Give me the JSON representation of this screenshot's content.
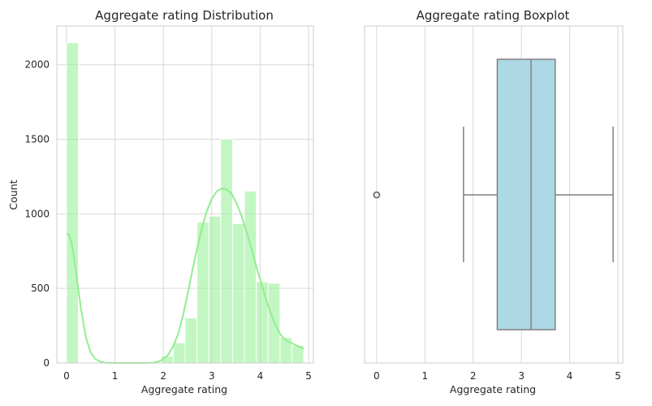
{
  "chart_data": [
    {
      "type": "bar",
      "title": "Aggregate rating Distribution",
      "xlabel": "Aggregate rating",
      "ylabel": "Count",
      "xlim": [
        -0.2,
        5.1
      ],
      "ylim": [
        0,
        2260
      ],
      "xticks": [
        0,
        1,
        2,
        3,
        4,
        5
      ],
      "yticks": [
        0,
        500,
        1000,
        1500,
        2000
      ],
      "grid": true,
      "bar_color": "#90ee90",
      "kde_color": "#90ee90",
      "bins": [
        {
          "x0": 0.0,
          "x1": 0.245,
          "count": 2148
        },
        {
          "x0": 0.245,
          "x1": 0.49,
          "count": 0
        },
        {
          "x0": 0.49,
          "x1": 0.735,
          "count": 0
        },
        {
          "x0": 0.735,
          "x1": 0.98,
          "count": 0
        },
        {
          "x0": 0.98,
          "x1": 1.225,
          "count": 0
        },
        {
          "x0": 1.225,
          "x1": 1.47,
          "count": 0
        },
        {
          "x0": 1.47,
          "x1": 1.715,
          "count": 0
        },
        {
          "x0": 1.715,
          "x1": 1.96,
          "count": 0
        },
        {
          "x0": 1.96,
          "x1": 2.205,
          "count": 48
        },
        {
          "x0": 2.205,
          "x1": 2.45,
          "count": 136
        },
        {
          "x0": 2.45,
          "x1": 2.695,
          "count": 302
        },
        {
          "x0": 2.695,
          "x1": 2.94,
          "count": 945
        },
        {
          "x0": 2.94,
          "x1": 3.185,
          "count": 985
        },
        {
          "x0": 3.185,
          "x1": 3.43,
          "count": 1502
        },
        {
          "x0": 3.43,
          "x1": 3.675,
          "count": 935
        },
        {
          "x0": 3.675,
          "x1": 3.92,
          "count": 1153
        },
        {
          "x0": 3.92,
          "x1": 4.165,
          "count": 545
        },
        {
          "x0": 4.165,
          "x1": 4.41,
          "count": 535
        },
        {
          "x0": 4.41,
          "x1": 4.655,
          "count": 172
        },
        {
          "x0": 4.655,
          "x1": 4.9,
          "count": 118
        }
      ],
      "kde": {
        "x": [
          0.0,
          0.05,
          0.1,
          0.15,
          0.2,
          0.3,
          0.4,
          0.5,
          0.6,
          0.7,
          0.8,
          1.0,
          1.2,
          1.4,
          1.6,
          1.8,
          1.9,
          2.0,
          2.1,
          2.2,
          2.3,
          2.4,
          2.5,
          2.6,
          2.7,
          2.8,
          2.9,
          3.0,
          3.1,
          3.2,
          3.3,
          3.4,
          3.5,
          3.6,
          3.7,
          3.8,
          3.9,
          4.0,
          4.1,
          4.2,
          4.3,
          4.4,
          4.5,
          4.6,
          4.7,
          4.8,
          4.9
        ],
        "y": [
          870,
          860,
          810,
          720,
          600,
          360,
          170,
          70,
          25,
          8,
          2,
          0,
          0,
          0,
          0,
          2,
          10,
          25,
          55,
          110,
          190,
          310,
          460,
          620,
          770,
          910,
          1020,
          1100,
          1150,
          1170,
          1165,
          1140,
          1080,
          1000,
          900,
          790,
          670,
          560,
          450,
          350,
          265,
          200,
          160,
          140,
          125,
          110,
          95
        ]
      }
    },
    {
      "type": "boxplot",
      "title": "Aggregate rating Boxplot",
      "xlabel": "Aggregate rating",
      "xlim": [
        -0.25,
        5.1
      ],
      "xticks": [
        0,
        1,
        2,
        3,
        4,
        5
      ],
      "grid": true,
      "box_color": "#add8e6",
      "line_color": "#808080",
      "whisker_low": 1.8,
      "q1": 2.5,
      "median": 3.2,
      "q3": 3.7,
      "whisker_high": 4.9,
      "outliers": [
        0
      ]
    }
  ]
}
